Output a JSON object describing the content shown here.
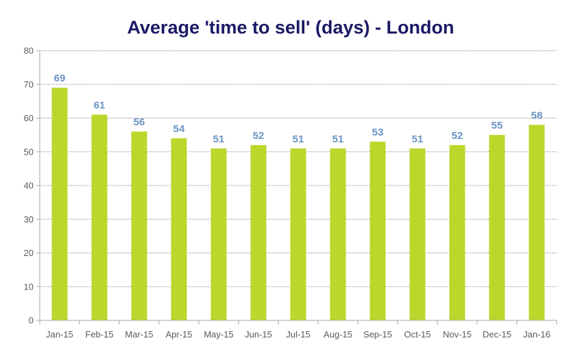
{
  "chart_data": {
    "type": "bar",
    "title": "Average 'time to sell' (days) - London",
    "xlabel": "",
    "ylabel": "",
    "ylim": [
      0,
      80
    ],
    "yticks": [
      "0",
      "10",
      "20",
      "30",
      "40",
      "50",
      "60",
      "70",
      "80"
    ],
    "categories": [
      "Jan-15",
      "Feb-15",
      "Mar-15",
      "Apr-15",
      "May-15",
      "Jun-15",
      "Jul-15",
      "Aug-15",
      "Sep-15",
      "Oct-15",
      "Nov-15",
      "Dec-15",
      "Jan-16"
    ],
    "values": [
      69,
      61,
      56,
      54,
      51,
      52,
      51,
      51,
      53,
      51,
      52,
      55,
      58
    ],
    "grid": true,
    "legend": "none",
    "colors": {
      "bar": "#bdd62b",
      "data_label": "#6b93c4",
      "title": "#1a1a66",
      "axis": "#a6a6a6",
      "grid": "#8c8c8c"
    }
  }
}
